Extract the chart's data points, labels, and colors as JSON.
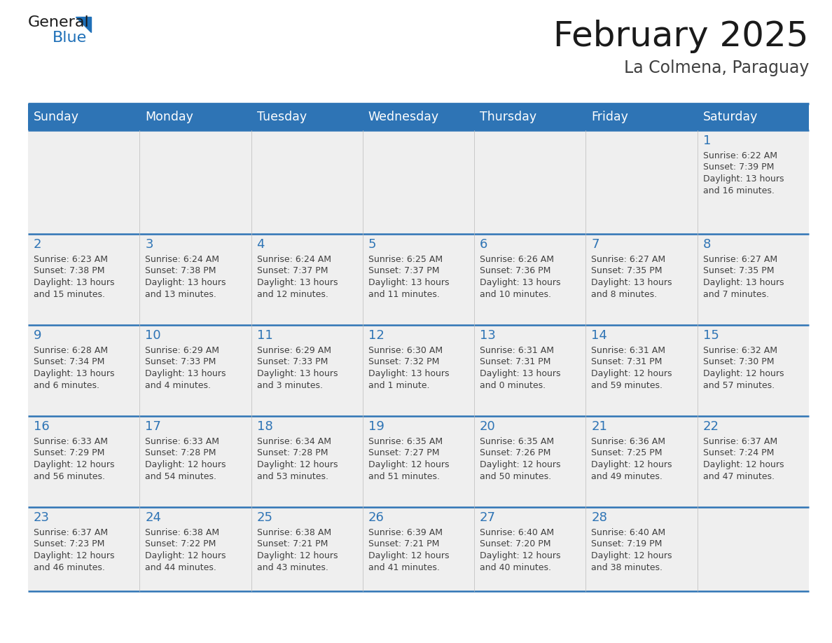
{
  "title": "February 2025",
  "subtitle": "La Colmena, Paraguay",
  "days_of_week": [
    "Sunday",
    "Monday",
    "Tuesday",
    "Wednesday",
    "Thursday",
    "Friday",
    "Saturday"
  ],
  "header_bg": "#2E74B5",
  "header_text": "#FFFFFF",
  "cell_bg_light": "#EFEFEF",
  "cell_bg_white": "#FFFFFF",
  "day_number_color": "#2E74B5",
  "text_color": "#404040",
  "line_color": "#2E74B5",
  "logo_blue": "#1F70B8",
  "logo_dark": "#1A1A1A",
  "calendar_data": [
    [
      null,
      null,
      null,
      null,
      null,
      null,
      {
        "day": 1,
        "sunrise": "6:22 AM",
        "sunset": "7:39 PM",
        "daylight": "13 hours",
        "daylight2": "and 16 minutes."
      }
    ],
    [
      {
        "day": 2,
        "sunrise": "6:23 AM",
        "sunset": "7:38 PM",
        "daylight": "13 hours",
        "daylight2": "and 15 minutes."
      },
      {
        "day": 3,
        "sunrise": "6:24 AM",
        "sunset": "7:38 PM",
        "daylight": "13 hours",
        "daylight2": "and 13 minutes."
      },
      {
        "day": 4,
        "sunrise": "6:24 AM",
        "sunset": "7:37 PM",
        "daylight": "13 hours",
        "daylight2": "and 12 minutes."
      },
      {
        "day": 5,
        "sunrise": "6:25 AM",
        "sunset": "7:37 PM",
        "daylight": "13 hours",
        "daylight2": "and 11 minutes."
      },
      {
        "day": 6,
        "sunrise": "6:26 AM",
        "sunset": "7:36 PM",
        "daylight": "13 hours",
        "daylight2": "and 10 minutes."
      },
      {
        "day": 7,
        "sunrise": "6:27 AM",
        "sunset": "7:35 PM",
        "daylight": "13 hours",
        "daylight2": "and 8 minutes."
      },
      {
        "day": 8,
        "sunrise": "6:27 AM",
        "sunset": "7:35 PM",
        "daylight": "13 hours",
        "daylight2": "and 7 minutes."
      }
    ],
    [
      {
        "day": 9,
        "sunrise": "6:28 AM",
        "sunset": "7:34 PM",
        "daylight": "13 hours",
        "daylight2": "and 6 minutes."
      },
      {
        "day": 10,
        "sunrise": "6:29 AM",
        "sunset": "7:33 PM",
        "daylight": "13 hours",
        "daylight2": "and 4 minutes."
      },
      {
        "day": 11,
        "sunrise": "6:29 AM",
        "sunset": "7:33 PM",
        "daylight": "13 hours",
        "daylight2": "and 3 minutes."
      },
      {
        "day": 12,
        "sunrise": "6:30 AM",
        "sunset": "7:32 PM",
        "daylight": "13 hours",
        "daylight2": "and 1 minute."
      },
      {
        "day": 13,
        "sunrise": "6:31 AM",
        "sunset": "7:31 PM",
        "daylight": "13 hours",
        "daylight2": "and 0 minutes."
      },
      {
        "day": 14,
        "sunrise": "6:31 AM",
        "sunset": "7:31 PM",
        "daylight": "12 hours",
        "daylight2": "and 59 minutes."
      },
      {
        "day": 15,
        "sunrise": "6:32 AM",
        "sunset": "7:30 PM",
        "daylight": "12 hours",
        "daylight2": "and 57 minutes."
      }
    ],
    [
      {
        "day": 16,
        "sunrise": "6:33 AM",
        "sunset": "7:29 PM",
        "daylight": "12 hours",
        "daylight2": "and 56 minutes."
      },
      {
        "day": 17,
        "sunrise": "6:33 AM",
        "sunset": "7:28 PM",
        "daylight": "12 hours",
        "daylight2": "and 54 minutes."
      },
      {
        "day": 18,
        "sunrise": "6:34 AM",
        "sunset": "7:28 PM",
        "daylight": "12 hours",
        "daylight2": "and 53 minutes."
      },
      {
        "day": 19,
        "sunrise": "6:35 AM",
        "sunset": "7:27 PM",
        "daylight": "12 hours",
        "daylight2": "and 51 minutes."
      },
      {
        "day": 20,
        "sunrise": "6:35 AM",
        "sunset": "7:26 PM",
        "daylight": "12 hours",
        "daylight2": "and 50 minutes."
      },
      {
        "day": 21,
        "sunrise": "6:36 AM",
        "sunset": "7:25 PM",
        "daylight": "12 hours",
        "daylight2": "and 49 minutes."
      },
      {
        "day": 22,
        "sunrise": "6:37 AM",
        "sunset": "7:24 PM",
        "daylight": "12 hours",
        "daylight2": "and 47 minutes."
      }
    ],
    [
      {
        "day": 23,
        "sunrise": "6:37 AM",
        "sunset": "7:23 PM",
        "daylight": "12 hours",
        "daylight2": "and 46 minutes."
      },
      {
        "day": 24,
        "sunrise": "6:38 AM",
        "sunset": "7:22 PM",
        "daylight": "12 hours",
        "daylight2": "and 44 minutes."
      },
      {
        "day": 25,
        "sunrise": "6:38 AM",
        "sunset": "7:21 PM",
        "daylight": "12 hours",
        "daylight2": "and 43 minutes."
      },
      {
        "day": 26,
        "sunrise": "6:39 AM",
        "sunset": "7:21 PM",
        "daylight": "12 hours",
        "daylight2": "and 41 minutes."
      },
      {
        "day": 27,
        "sunrise": "6:40 AM",
        "sunset": "7:20 PM",
        "daylight": "12 hours",
        "daylight2": "and 40 minutes."
      },
      {
        "day": 28,
        "sunrise": "6:40 AM",
        "sunset": "7:19 PM",
        "daylight": "12 hours",
        "daylight2": "and 38 minutes."
      },
      null
    ]
  ]
}
